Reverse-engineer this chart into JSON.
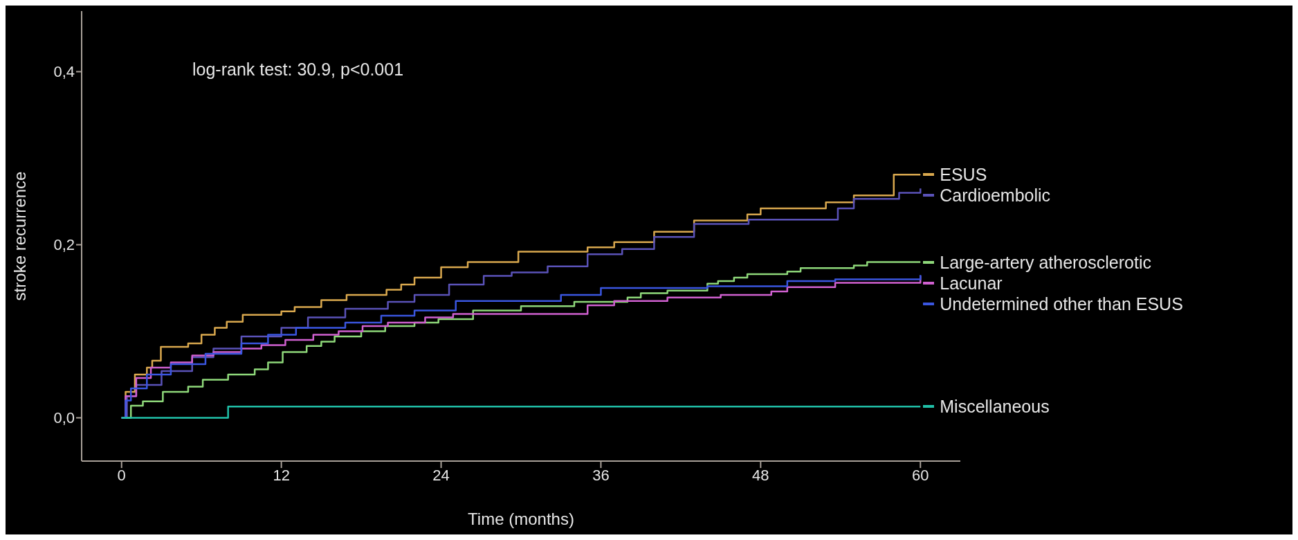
{
  "chart_data": {
    "type": "step",
    "xlabel": "Time (months)",
    "ylabel": "stroke recurrence",
    "annotations": [
      "log-rank test: 30.9, p<0.001"
    ],
    "xlim": [
      -3,
      63
    ],
    "xticks": [
      0,
      12,
      24,
      36,
      48,
      60
    ],
    "ylim": [
      -0.05,
      0.47
    ],
    "yticks": [
      {
        "value": 0,
        "label": "0,0"
      },
      {
        "value": 0.2,
        "label": "0,2"
      },
      {
        "value": 0.4,
        "label": "0,4"
      }
    ],
    "grid": false,
    "legend": "right",
    "marker": "none",
    "line_style": "solid",
    "series": [
      {
        "name": "ESUS",
        "color": "#d9a84e",
        "x": [
          0,
          0.3,
          1,
          1.9,
          2.3,
          2.95,
          5,
          6,
          7,
          7.9,
          9.1,
          12,
          13,
          15,
          16.9,
          19.9,
          21,
          22,
          24,
          26,
          29.8,
          35,
          37,
          40,
          43,
          47,
          48,
          52.9,
          55,
          58,
          60
        ],
        "values": [
          0,
          0.03,
          0.05,
          0.058,
          0.066,
          0.082,
          0.086,
          0.096,
          0.104,
          0.111,
          0.119,
          0.123,
          0.128,
          0.136,
          0.142,
          0.148,
          0.154,
          0.162,
          0.174,
          0.18,
          0.192,
          0.197,
          0.203,
          0.215,
          0.228,
          0.235,
          0.242,
          0.249,
          0.257,
          0.281,
          0.281
        ]
      },
      {
        "name": "Cardioembolic",
        "color": "#5a52b8",
        "x": [
          0,
          0.4,
          1.1,
          3,
          5.3,
          6.9,
          9,
          12,
          14,
          16.8,
          20,
          22,
          24.6,
          27.2,
          29.3,
          32,
          35,
          37.6,
          40,
          43,
          47.1,
          53.8,
          55,
          58.4,
          60
        ],
        "values": [
          0,
          0.025,
          0.038,
          0.054,
          0.07,
          0.08,
          0.094,
          0.104,
          0.116,
          0.126,
          0.134,
          0.142,
          0.154,
          0.164,
          0.168,
          0.175,
          0.189,
          0.195,
          0.209,
          0.224,
          0.229,
          0.242,
          0.253,
          0.26,
          0.265
        ]
      },
      {
        "name": "Large-artery atherosclerotic",
        "color": "#8ed87a",
        "x": [
          0,
          0.7,
          1.6,
          3.1,
          5,
          6.1,
          8,
          10,
          11,
          12.1,
          13.9,
          15,
          16,
          18,
          19.8,
          22,
          23.8,
          26.4,
          30,
          34,
          38,
          39,
          41,
          44,
          44.8,
          46,
          47,
          50,
          51,
          55,
          56,
          60
        ],
        "values": [
          0,
          0.014,
          0.019,
          0.03,
          0.036,
          0.044,
          0.05,
          0.056,
          0.064,
          0.076,
          0.083,
          0.088,
          0.094,
          0.1,
          0.106,
          0.11,
          0.114,
          0.124,
          0.129,
          0.134,
          0.139,
          0.144,
          0.147,
          0.155,
          0.158,
          0.162,
          0.166,
          0.169,
          0.173,
          0.176,
          0.18,
          0.18
        ]
      },
      {
        "name": "Lacunar",
        "color": "#d060d0",
        "x": [
          0,
          0.3,
          1.1,
          2.2,
          3.7,
          5.3,
          6.9,
          9,
          10.5,
          12.3,
          14.4,
          16.3,
          18.1,
          20,
          22.8,
          24.9,
          35,
          37,
          41,
          45,
          48.8,
          50,
          53.6,
          60
        ],
        "values": [
          0,
          0.025,
          0.046,
          0.058,
          0.064,
          0.072,
          0.076,
          0.08,
          0.084,
          0.09,
          0.096,
          0.1,
          0.106,
          0.11,
          0.116,
          0.12,
          0.13,
          0.135,
          0.139,
          0.142,
          0.146,
          0.151,
          0.156,
          0.164
        ]
      },
      {
        "name": "Undetermined other than ESUS",
        "color": "#3a56e0",
        "x": [
          0,
          0.3,
          0.7,
          1.9,
          3.7,
          6.3,
          9,
          11,
          13.1,
          16.8,
          19.5,
          22,
          25.1,
          33,
          36,
          44,
          50,
          53.6,
          60
        ],
        "values": [
          0,
          0.02,
          0.034,
          0.05,
          0.062,
          0.074,
          0.086,
          0.096,
          0.104,
          0.11,
          0.118,
          0.124,
          0.135,
          0.142,
          0.15,
          0.152,
          0.158,
          0.16,
          0.165
        ]
      },
      {
        "name": "Miscellaneous",
        "color": "#20c0a8",
        "x": [
          0,
          8,
          60
        ],
        "values": [
          0,
          0.013,
          0.013
        ]
      }
    ]
  }
}
